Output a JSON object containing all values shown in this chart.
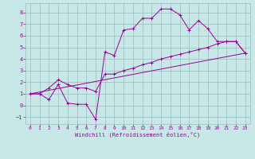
{
  "xlabel": "Windchill (Refroidissement éolien,°C)",
  "bg_color": "#c8e8e8",
  "grid_color": "#99bbbb",
  "line_color": "#990099",
  "xlim": [
    -0.5,
    23.5
  ],
  "ylim": [
    -1.6,
    8.8
  ],
  "xticks": [
    0,
    1,
    2,
    3,
    4,
    5,
    6,
    7,
    8,
    9,
    10,
    11,
    12,
    13,
    14,
    15,
    16,
    17,
    18,
    19,
    20,
    21,
    22,
    23
  ],
  "yticks": [
    -1,
    0,
    1,
    2,
    3,
    4,
    5,
    6,
    7,
    8
  ],
  "line1_x": [
    0,
    1,
    2,
    3,
    4,
    5,
    6,
    7,
    8,
    9,
    10,
    11,
    12,
    13,
    14,
    15,
    16,
    17,
    18,
    19,
    20,
    21,
    22,
    23
  ],
  "line1_y": [
    1.0,
    1.0,
    0.5,
    1.8,
    0.2,
    0.1,
    0.1,
    -1.2,
    4.6,
    4.3,
    6.5,
    6.6,
    7.5,
    7.5,
    8.3,
    8.3,
    7.8,
    6.5,
    7.3,
    6.6,
    5.5,
    5.5,
    5.5,
    4.5
  ],
  "line2_x": [
    0,
    1,
    2,
    3,
    4,
    5,
    6,
    7,
    8,
    9,
    10,
    11,
    12,
    13,
    14,
    15,
    16,
    17,
    18,
    19,
    20,
    21,
    22,
    23
  ],
  "line2_y": [
    1.0,
    1.0,
    1.5,
    2.2,
    1.8,
    1.5,
    1.5,
    1.2,
    2.7,
    2.7,
    3.0,
    3.2,
    3.5,
    3.7,
    4.0,
    4.2,
    4.4,
    4.6,
    4.8,
    5.0,
    5.3,
    5.5,
    5.5,
    4.5
  ],
  "line3_x": [
    0,
    23
  ],
  "line3_y": [
    1.0,
    4.5
  ]
}
